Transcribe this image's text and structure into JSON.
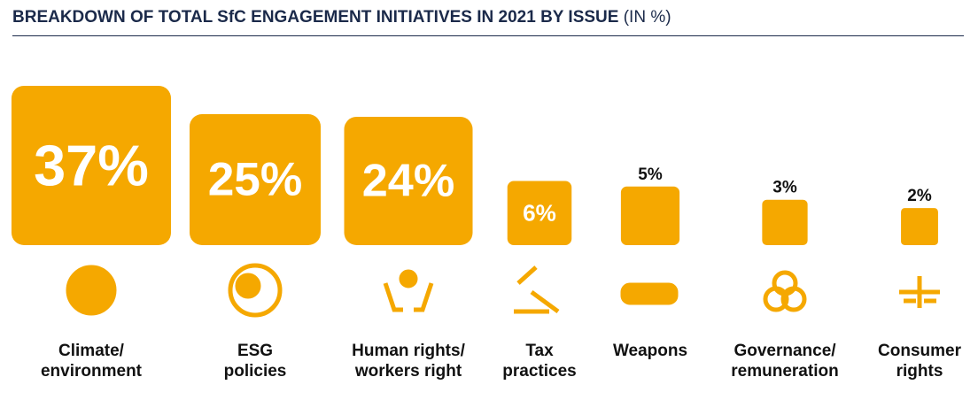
{
  "chart_data": {
    "type": "square",
    "title": "BREAKDOWN OF TOTAL SfC ENGAGEMENT INITIATIVES IN 2021 BY ISSUE",
    "subtitle": "(IN %)",
    "categories": [
      "Climate/\nenvironment",
      "ESG\npolicies",
      "Human rights/\nworkers right",
      "Tax\npractices",
      "Weapons",
      "Governance/\nremuneration",
      "Consumer\nrights"
    ],
    "values": [
      37,
      25,
      24,
      6,
      5,
      3,
      2
    ],
    "value_labels": [
      "37%",
      "25%",
      "24%",
      "6%",
      "5%",
      "3%",
      "2%"
    ],
    "color": "#f5a800"
  }
}
